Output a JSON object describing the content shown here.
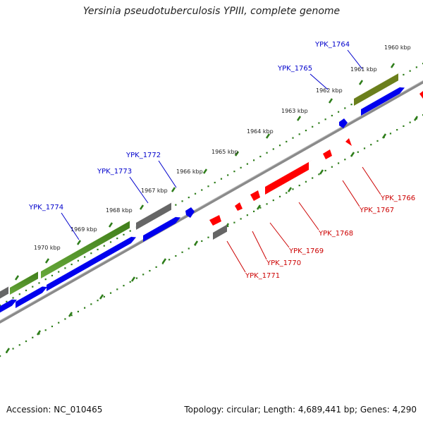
{
  "title": "Yersinia pseudotuberculosis YPIII, complete genome",
  "footer": {
    "accession": "Accession: NC_010465",
    "summary": "Topology: circular; Length: 4,689,441 bp; Genes: 4,290"
  },
  "colors": {
    "backbone": "#808080",
    "forward_gene": "#0000ff",
    "reverse_gene": "#ff0000",
    "pseudo_gene": "#777777",
    "cds_green": "#4a8a1f",
    "cds_olive": "#6b7f1c",
    "cds_light": "#b5f06a",
    "tick": "#2e7d1a",
    "forward_label": "#0000cc",
    "reverse_label": "#cc0000"
  },
  "scale": {
    "unit": "kbp",
    "ticks": [
      {
        "value": 1960,
        "label": "1960 kbp"
      },
      {
        "value": 1961,
        "label": "1961 kbp"
      },
      {
        "value": 1962,
        "label": "1962 kbp"
      },
      {
        "value": 1963,
        "label": "1963 kbp"
      },
      {
        "value": 1964,
        "label": "1964 kbp"
      },
      {
        "value": 1965,
        "label": "1965 kbp"
      },
      {
        "value": 1966,
        "label": "1966 kbp"
      },
      {
        "value": 1967,
        "label": "1967 kbp"
      },
      {
        "value": 1968,
        "label": "1968 kbp"
      },
      {
        "value": 1969,
        "label": "1969 kbp"
      },
      {
        "value": 1970,
        "label": "1970 kbp"
      }
    ]
  },
  "forward_genes": [
    {
      "label": "YPK_1764",
      "kind": "cds"
    },
    {
      "label": "YPK_1765",
      "kind": "small"
    },
    {
      "label": "YPK_1772",
      "kind": "small"
    },
    {
      "label": "YPK_1773",
      "kind": "cds"
    },
    {
      "label": "YPK_1774",
      "kind": "cds"
    }
  ],
  "reverse_genes": [
    {
      "label": "YPK_1766"
    },
    {
      "label": "YPK_1767"
    },
    {
      "label": "YPK_1768"
    },
    {
      "label": "YPK_1769"
    },
    {
      "label": "YPK_1770"
    },
    {
      "label": "YPK_1771"
    }
  ]
}
